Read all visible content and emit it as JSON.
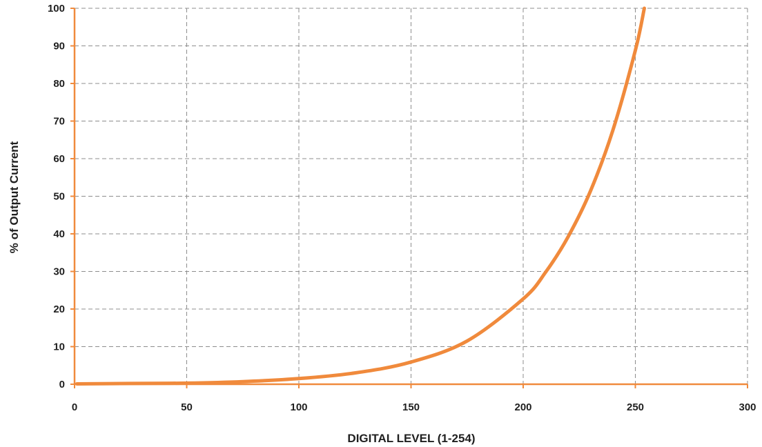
{
  "chart_data": {
    "type": "line",
    "title": "",
    "xlabel": "DIGITAL LEVEL (1-254)",
    "ylabel": "% of Output Current",
    "xlim": [
      0,
      300
    ],
    "ylim": [
      0,
      100
    ],
    "x_ticks": [
      0,
      50,
      100,
      150,
      200,
      250,
      300
    ],
    "y_ticks": [
      0,
      10,
      20,
      30,
      40,
      50,
      60,
      70,
      80,
      90,
      100
    ],
    "grid": true,
    "grid_style": "dashed",
    "series": [
      {
        "color": "#f08a3c",
        "x": [
          1,
          25,
          50,
          75,
          100,
          125,
          150,
          175,
          200,
          210,
          220,
          230,
          240,
          250,
          254
        ],
        "y": [
          0.1,
          0.2,
          0.3,
          0.7,
          1.5,
          3.0,
          5.9,
          11.5,
          22.7,
          29.8,
          39.2,
          51.4,
          67.6,
          88.8,
          100
        ]
      }
    ]
  }
}
